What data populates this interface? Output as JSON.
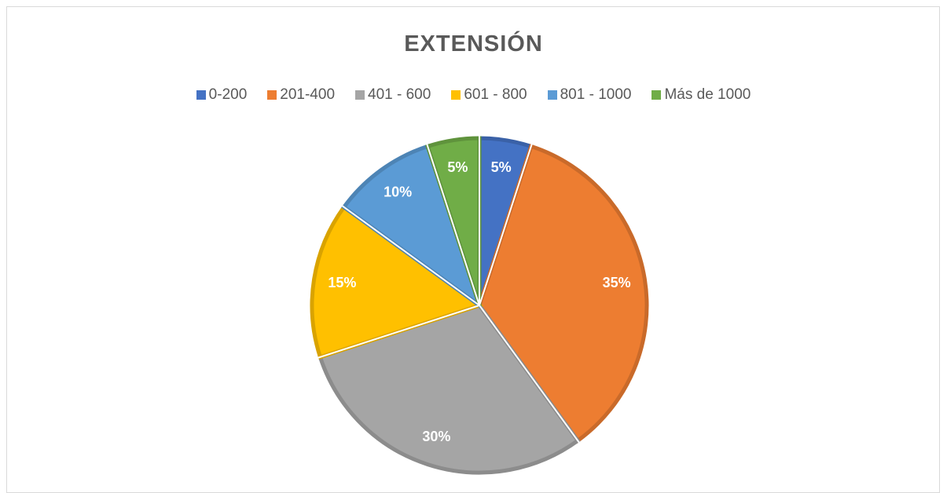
{
  "chart_data": {
    "type": "pie",
    "title": "EXTENSIÓN",
    "categories": [
      "0-200",
      "201-400",
      "401 - 600",
      "601 - 800",
      "801 - 1000",
      "Más de 1000"
    ],
    "values": [
      5,
      35,
      30,
      15,
      10,
      5
    ],
    "value_labels": [
      "5%",
      "35%",
      "30%",
      "15%",
      "10%",
      "5%"
    ],
    "colors": [
      "#4472c4",
      "#ed7d31",
      "#a5a5a5",
      "#ffc000",
      "#5b9bd5",
      "#70ad47"
    ],
    "legend": "top"
  }
}
